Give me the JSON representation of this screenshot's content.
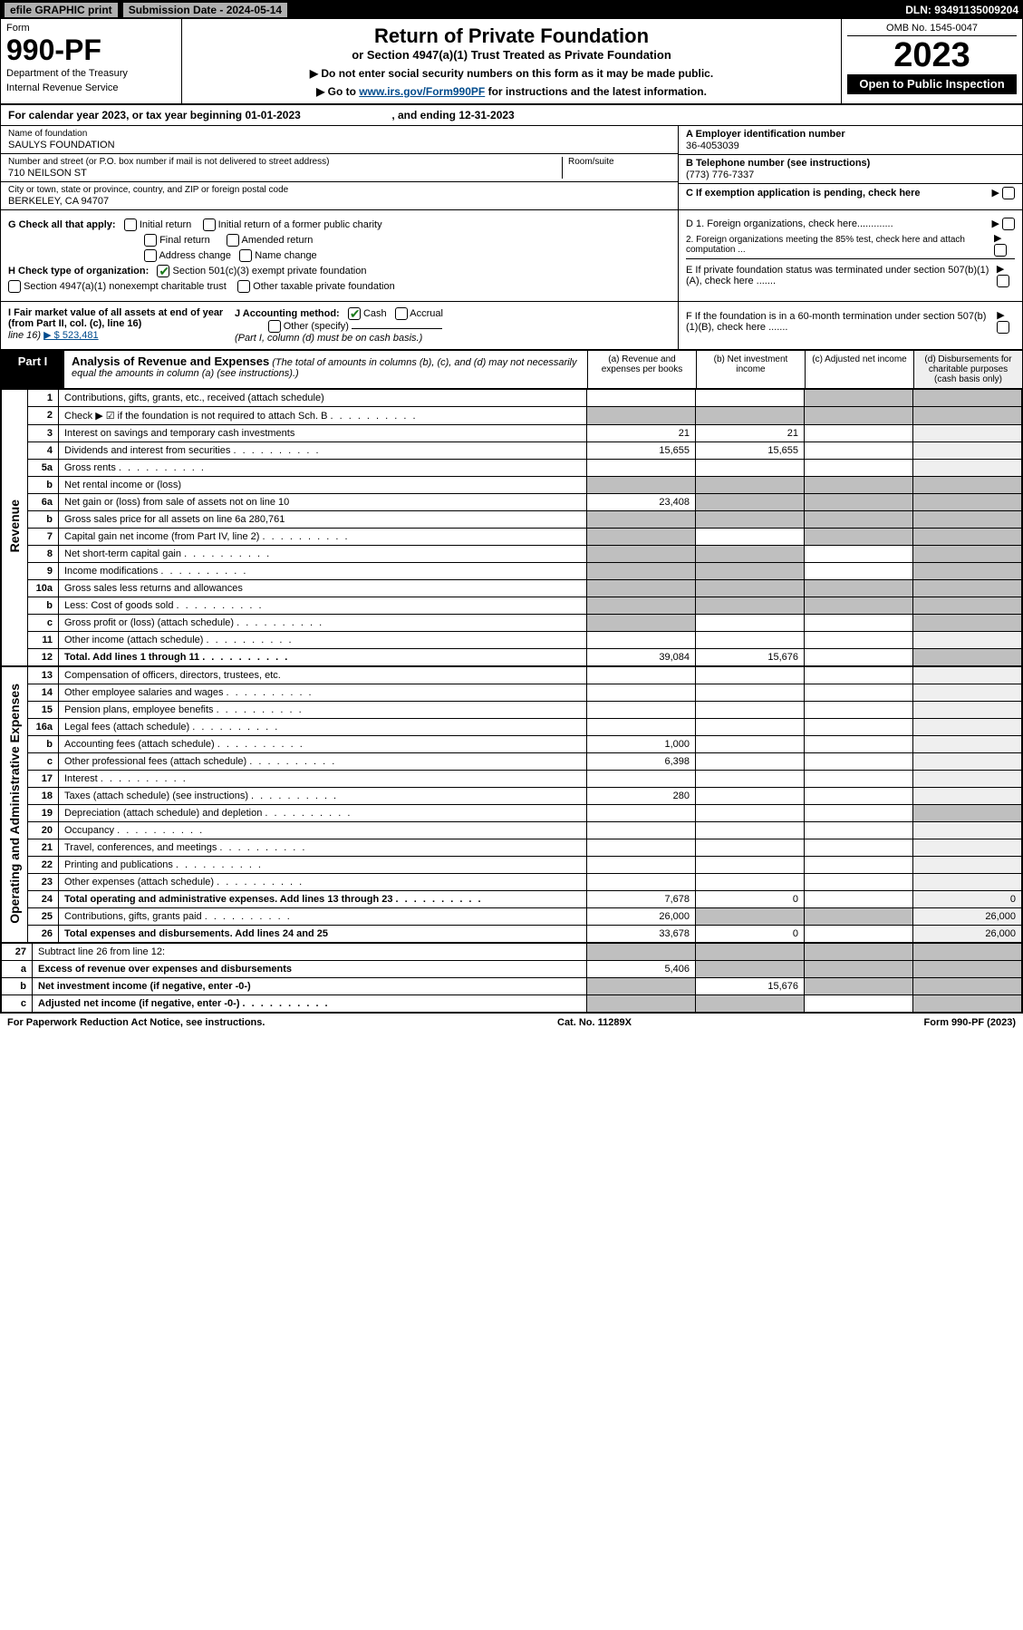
{
  "topbar": {
    "efile": "efile GRAPHIC print",
    "subdate": "Submission Date - 2024-05-14",
    "dln": "DLN: 93491135009204"
  },
  "header": {
    "form_label": "Form",
    "form_no": "990-PF",
    "dept": "Department of the Treasury",
    "irs": "Internal Revenue Service",
    "title": "Return of Private Foundation",
    "subtitle": "or Section 4947(a)(1) Trust Treated as Private Foundation",
    "note1": "▶ Do not enter social security numbers on this form as it may be made public.",
    "note2_a": "▶ Go to ",
    "note2_link": "www.irs.gov/Form990PF",
    "note2_b": " for instructions and the latest information.",
    "omb": "OMB No. 1545-0047",
    "year": "2023",
    "open": "Open to Public Inspection"
  },
  "cal": {
    "a": "For calendar year 2023, or tax year beginning 01-01-2023",
    "b": ", and ending 12-31-2023"
  },
  "id": {
    "name_lbl": "Name of foundation",
    "name": "SAULYS FOUNDATION",
    "addr_lbl": "Number and street (or P.O. box number if mail is not delivered to street address)",
    "addr": "710 NEILSON ST",
    "room_lbl": "Room/suite",
    "city_lbl": "City or town, state or province, country, and ZIP or foreign postal code",
    "city": "BERKELEY, CA  94707",
    "a_lbl": "A Employer identification number",
    "a_val": "36-4053039",
    "b_lbl": "B Telephone number (see instructions)",
    "b_val": "(773) 776-7337",
    "c_lbl": "C If exemption application is pending, check here"
  },
  "g": {
    "lbl": "G Check all that apply:",
    "o1": "Initial return",
    "o2": "Initial return of a former public charity",
    "o3": "Final return",
    "o4": "Amended return",
    "o5": "Address change",
    "o6": "Name change"
  },
  "h": {
    "lbl": "H Check type of organization:",
    "o1": "Section 501(c)(3) exempt private foundation",
    "o2": "Section 4947(a)(1) nonexempt charitable trust",
    "o3": "Other taxable private foundation"
  },
  "i": {
    "lbl": "I Fair market value of all assets at end of year (from Part II, col. (c), line 16)",
    "val": "▶ $  523,481"
  },
  "j": {
    "lbl": "J Accounting method:",
    "o1": "Cash",
    "o2": "Accrual",
    "o3": "Other (specify)",
    "note": "(Part I, column (d) must be on cash basis.)"
  },
  "right": {
    "d1": "D 1. Foreign organizations, check here.............",
    "d2": "2. Foreign organizations meeting the 85% test, check here and attach computation ...",
    "e": "E  If private foundation status was terminated under section 507(b)(1)(A), check here .......",
    "f": "F  If the foundation is in a 60-month termination under section 507(b)(1)(B), check here .......",
    "arrow": "▶"
  },
  "part1": {
    "lbl": "Part I",
    "title": "Analysis of Revenue and Expenses",
    "note": " (The total of amounts in columns (b), (c), and (d) may not necessarily equal the amounts in column (a) (see instructions).)",
    "cols": {
      "a": "(a)   Revenue and expenses per books",
      "b": "(b)   Net investment income",
      "c": "(c)   Adjusted net income",
      "d": "(d)   Disbursements for charitable purposes (cash basis only)"
    }
  },
  "side": {
    "rev": "Revenue",
    "oae": "Operating and Administrative Expenses"
  },
  "rows": [
    {
      "n": "1",
      "d": "Contributions, gifts, grants, etc., received (attach schedule)",
      "a": "",
      "b": "",
      "c": "g",
      "e": "g"
    },
    {
      "n": "2",
      "d": "Check ▶ ☑ if the foundation is not required to attach Sch. B",
      "dots": 1,
      "a": "g",
      "b": "g",
      "c": "g",
      "e": "g"
    },
    {
      "n": "3",
      "d": "Interest on savings and temporary cash investments",
      "a": "21",
      "b": "21"
    },
    {
      "n": "4",
      "d": "Dividends and interest from securities",
      "dots": 1,
      "a": "15,655",
      "b": "15,655"
    },
    {
      "n": "5a",
      "d": "Gross rents",
      "dots": 1
    },
    {
      "n": "b",
      "d": "Net rental income or (loss)",
      "uline": 1,
      "a": "g",
      "b": "g",
      "c": "g",
      "e": "g"
    },
    {
      "n": "6a",
      "d": "Net gain or (loss) from sale of assets not on line 10",
      "a": "23,408",
      "b": "g",
      "c": "g",
      "e": "g"
    },
    {
      "n": "b",
      "d": "Gross sales price for all assets on line 6a                280,761",
      "uline": 1,
      "a": "g",
      "b": "g",
      "c": "g",
      "e": "g"
    },
    {
      "n": "7",
      "d": "Capital gain net income (from Part IV, line 2)",
      "dots": 1,
      "a": "g",
      "c": "g",
      "e": "g"
    },
    {
      "n": "8",
      "d": "Net short-term capital gain",
      "dots": 1,
      "a": "g",
      "b": "g",
      "e": "g"
    },
    {
      "n": "9",
      "d": "Income modifications",
      "dots": 1,
      "a": "g",
      "b": "g",
      "e": "g"
    },
    {
      "n": "10a",
      "d": "Gross sales less returns and allowances",
      "uline": 1,
      "a": "g",
      "b": "g",
      "c": "g",
      "e": "g"
    },
    {
      "n": "b",
      "d": "Less: Cost of goods sold",
      "dots": 1,
      "uline": 1,
      "a": "g",
      "b": "g",
      "c": "g",
      "e": "g"
    },
    {
      "n": "c",
      "d": "Gross profit or (loss) (attach schedule)",
      "dots": 1,
      "a": "g",
      "e": "g"
    },
    {
      "n": "11",
      "d": "Other income (attach schedule)",
      "dots": 1
    },
    {
      "n": "12",
      "d": "Total. Add lines 1 through 11",
      "dots": 1,
      "bold": 1,
      "a": "39,084",
      "b": "15,676",
      "e": "g"
    }
  ],
  "rows2": [
    {
      "n": "13",
      "d": "Compensation of officers, directors, trustees, etc."
    },
    {
      "n": "14",
      "d": "Other employee salaries and wages",
      "dots": 1
    },
    {
      "n": "15",
      "d": "Pension plans, employee benefits",
      "dots": 1
    },
    {
      "n": "16a",
      "d": "Legal fees (attach schedule)",
      "dots": 1
    },
    {
      "n": "b",
      "d": "Accounting fees (attach schedule)",
      "dots": 1,
      "a": "1,000"
    },
    {
      "n": "c",
      "d": "Other professional fees (attach schedule)",
      "dots": 1,
      "a": "6,398"
    },
    {
      "n": "17",
      "d": "Interest",
      "dots": 1
    },
    {
      "n": "18",
      "d": "Taxes (attach schedule) (see instructions)",
      "dots": 1,
      "a": "280"
    },
    {
      "n": "19",
      "d": "Depreciation (attach schedule) and depletion",
      "dots": 1,
      "e": "g"
    },
    {
      "n": "20",
      "d": "Occupancy",
      "dots": 1
    },
    {
      "n": "21",
      "d": "Travel, conferences, and meetings",
      "dots": 1
    },
    {
      "n": "22",
      "d": "Printing and publications",
      "dots": 1
    },
    {
      "n": "23",
      "d": "Other expenses (attach schedule)",
      "dots": 1
    },
    {
      "n": "24",
      "d": "Total operating and administrative expenses. Add lines 13 through 23",
      "dots": 1,
      "bold": 1,
      "a": "7,678",
      "b": "0",
      "e": "0"
    },
    {
      "n": "25",
      "d": "Contributions, gifts, grants paid",
      "dots": 1,
      "a": "26,000",
      "b": "g",
      "c": "g",
      "e": "26,000"
    },
    {
      "n": "26",
      "d": "Total expenses and disbursements. Add lines 24 and 25",
      "bold": 1,
      "a": "33,678",
      "b": "0",
      "e": "26,000"
    }
  ],
  "rows3": [
    {
      "n": "27",
      "d": "Subtract line 26 from line 12:",
      "a": "g",
      "b": "g",
      "c": "g",
      "e": "g"
    },
    {
      "n": "a",
      "d": "Excess of revenue over expenses and disbursements",
      "bold": 1,
      "a": "5,406",
      "b": "g",
      "c": "g",
      "e": "g"
    },
    {
      "n": "b",
      "d": "Net investment income (if negative, enter -0-)",
      "bold": 1,
      "a": "g",
      "b": "15,676",
      "c": "g",
      "e": "g"
    },
    {
      "n": "c",
      "d": "Adjusted net income (if negative, enter -0-)",
      "dots": 1,
      "bold": 1,
      "a": "g",
      "b": "g",
      "e": "g"
    }
  ],
  "foot": {
    "l": "For Paperwork Reduction Act Notice, see instructions.",
    "c": "Cat. No. 11289X",
    "r": "Form 990-PF (2023)"
  }
}
